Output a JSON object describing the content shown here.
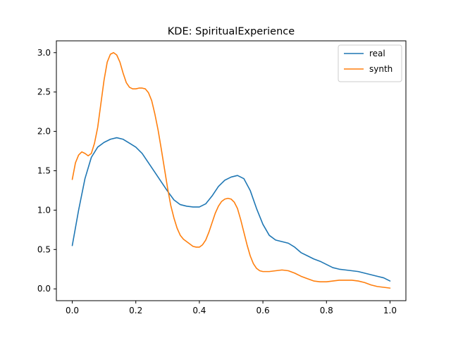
{
  "chart_data": {
    "type": "line",
    "title": "KDE: SpiritualExperience",
    "xlabel": "",
    "ylabel": "",
    "xlim": [
      -0.05,
      1.05
    ],
    "ylim": [
      -0.15,
      3.15
    ],
    "xticks": [
      0.0,
      0.2,
      0.4,
      0.6,
      0.8,
      1.0
    ],
    "xtick_labels": [
      "0.0",
      "0.2",
      "0.4",
      "0.6",
      "0.8",
      "1.0"
    ],
    "yticks": [
      0.0,
      0.5,
      1.0,
      1.5,
      2.0,
      2.5,
      3.0
    ],
    "ytick_labels": [
      "0.0",
      "0.5",
      "1.0",
      "1.5",
      "2.0",
      "2.5",
      "3.0"
    ],
    "grid": false,
    "legend_position": "top-right",
    "series": [
      {
        "name": "real",
        "color": "#1f77b4",
        "points": [
          [
            0.0,
            0.55
          ],
          [
            0.02,
            1.0
          ],
          [
            0.04,
            1.4
          ],
          [
            0.06,
            1.67
          ],
          [
            0.08,
            1.8
          ],
          [
            0.1,
            1.86
          ],
          [
            0.12,
            1.9
          ],
          [
            0.14,
            1.92
          ],
          [
            0.16,
            1.9
          ],
          [
            0.18,
            1.85
          ],
          [
            0.2,
            1.8
          ],
          [
            0.22,
            1.72
          ],
          [
            0.24,
            1.6
          ],
          [
            0.26,
            1.48
          ],
          [
            0.28,
            1.36
          ],
          [
            0.3,
            1.24
          ],
          [
            0.32,
            1.13
          ],
          [
            0.34,
            1.07
          ],
          [
            0.36,
            1.05
          ],
          [
            0.38,
            1.04
          ],
          [
            0.4,
            1.04
          ],
          [
            0.42,
            1.08
          ],
          [
            0.44,
            1.18
          ],
          [
            0.46,
            1.3
          ],
          [
            0.48,
            1.38
          ],
          [
            0.5,
            1.42
          ],
          [
            0.52,
            1.44
          ],
          [
            0.54,
            1.4
          ],
          [
            0.56,
            1.25
          ],
          [
            0.58,
            1.02
          ],
          [
            0.6,
            0.82
          ],
          [
            0.62,
            0.68
          ],
          [
            0.64,
            0.62
          ],
          [
            0.66,
            0.6
          ],
          [
            0.68,
            0.58
          ],
          [
            0.7,
            0.53
          ],
          [
            0.72,
            0.46
          ],
          [
            0.74,
            0.42
          ],
          [
            0.76,
            0.38
          ],
          [
            0.78,
            0.35
          ],
          [
            0.8,
            0.31
          ],
          [
            0.82,
            0.27
          ],
          [
            0.84,
            0.25
          ],
          [
            0.86,
            0.24
          ],
          [
            0.88,
            0.23
          ],
          [
            0.9,
            0.22
          ],
          [
            0.92,
            0.2
          ],
          [
            0.94,
            0.18
          ],
          [
            0.96,
            0.16
          ],
          [
            0.98,
            0.14
          ],
          [
            1.0,
            0.1
          ]
        ]
      },
      {
        "name": "synth",
        "color": "#ff7f0e",
        "points": [
          [
            0.0,
            1.39
          ],
          [
            0.01,
            1.6
          ],
          [
            0.02,
            1.7
          ],
          [
            0.03,
            1.74
          ],
          [
            0.04,
            1.72
          ],
          [
            0.05,
            1.69
          ],
          [
            0.06,
            1.72
          ],
          [
            0.07,
            1.85
          ],
          [
            0.08,
            2.05
          ],
          [
            0.09,
            2.35
          ],
          [
            0.1,
            2.65
          ],
          [
            0.11,
            2.88
          ],
          [
            0.12,
            2.98
          ],
          [
            0.13,
            3.0
          ],
          [
            0.14,
            2.97
          ],
          [
            0.15,
            2.88
          ],
          [
            0.16,
            2.74
          ],
          [
            0.17,
            2.62
          ],
          [
            0.18,
            2.56
          ],
          [
            0.19,
            2.54
          ],
          [
            0.2,
            2.54
          ],
          [
            0.21,
            2.55
          ],
          [
            0.22,
            2.55
          ],
          [
            0.23,
            2.54
          ],
          [
            0.24,
            2.49
          ],
          [
            0.25,
            2.39
          ],
          [
            0.26,
            2.22
          ],
          [
            0.27,
            2.02
          ],
          [
            0.28,
            1.78
          ],
          [
            0.29,
            1.53
          ],
          [
            0.3,
            1.28
          ],
          [
            0.31,
            1.06
          ],
          [
            0.32,
            0.9
          ],
          [
            0.33,
            0.77
          ],
          [
            0.34,
            0.68
          ],
          [
            0.35,
            0.63
          ],
          [
            0.36,
            0.6
          ],
          [
            0.37,
            0.57
          ],
          [
            0.38,
            0.54
          ],
          [
            0.39,
            0.53
          ],
          [
            0.4,
            0.53
          ],
          [
            0.41,
            0.56
          ],
          [
            0.42,
            0.62
          ],
          [
            0.43,
            0.72
          ],
          [
            0.44,
            0.84
          ],
          [
            0.45,
            0.96
          ],
          [
            0.46,
            1.05
          ],
          [
            0.47,
            1.11
          ],
          [
            0.48,
            1.14
          ],
          [
            0.49,
            1.15
          ],
          [
            0.5,
            1.14
          ],
          [
            0.51,
            1.1
          ],
          [
            0.52,
            1.02
          ],
          [
            0.53,
            0.88
          ],
          [
            0.54,
            0.72
          ],
          [
            0.55,
            0.56
          ],
          [
            0.56,
            0.42
          ],
          [
            0.57,
            0.32
          ],
          [
            0.58,
            0.26
          ],
          [
            0.59,
            0.23
          ],
          [
            0.6,
            0.22
          ],
          [
            0.62,
            0.22
          ],
          [
            0.64,
            0.23
          ],
          [
            0.66,
            0.24
          ],
          [
            0.68,
            0.23
          ],
          [
            0.7,
            0.2
          ],
          [
            0.72,
            0.16
          ],
          [
            0.74,
            0.13
          ],
          [
            0.76,
            0.1
          ],
          [
            0.78,
            0.09
          ],
          [
            0.8,
            0.09
          ],
          [
            0.82,
            0.1
          ],
          [
            0.84,
            0.11
          ],
          [
            0.86,
            0.11
          ],
          [
            0.88,
            0.11
          ],
          [
            0.9,
            0.1
          ],
          [
            0.92,
            0.08
          ],
          [
            0.94,
            0.05
          ],
          [
            0.96,
            0.03
          ],
          [
            0.98,
            0.02
          ],
          [
            1.0,
            0.01
          ]
        ]
      }
    ]
  }
}
